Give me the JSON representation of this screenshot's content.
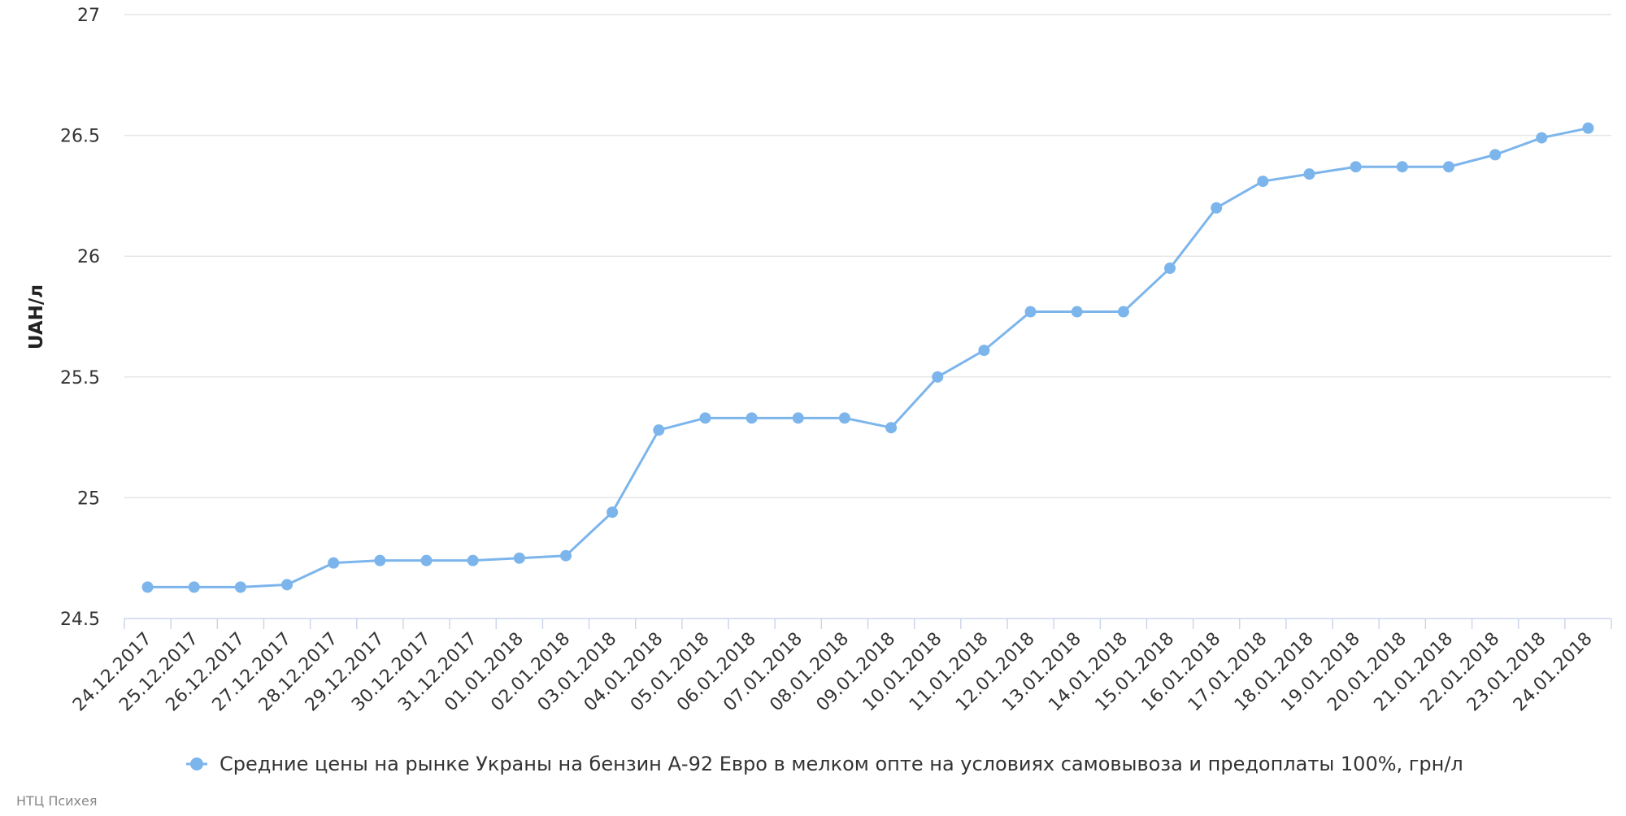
{
  "chart_data": {
    "type": "line",
    "title": "",
    "xlabel": "",
    "ylabel": "UAH/л",
    "ylim": [
      24.5,
      27
    ],
    "yticks": [
      "24.5",
      "25",
      "25.5",
      "26",
      "26.5",
      "27"
    ],
    "grid": true,
    "legend_position": "bottom",
    "categories": [
      "24.12.2017",
      "25.12.2017",
      "26.12.2017",
      "27.12.2017",
      "28.12.2017",
      "29.12.2017",
      "30.12.2017",
      "31.12.2017",
      "01.01.2018",
      "02.01.2018",
      "03.01.2018",
      "04.01.2018",
      "05.01.2018",
      "06.01.2018",
      "07.01.2018",
      "08.01.2018",
      "09.01.2018",
      "10.01.2018",
      "11.01.2018",
      "12.01.2018",
      "13.01.2018",
      "14.01.2018",
      "15.01.2018",
      "16.01.2018",
      "17.01.2018",
      "18.01.2018",
      "19.01.2018",
      "20.01.2018",
      "21.01.2018",
      "22.01.2018",
      "23.01.2018",
      "24.01.2018"
    ],
    "series": [
      {
        "name": "Средние цены на рынке Украны на бензин А-92 Евро в мелком опте на условиях самовывоза и предоплаты 100%, грн/л",
        "color": "#7cb5ec",
        "values": [
          24.63,
          24.63,
          24.63,
          24.64,
          24.73,
          24.74,
          24.74,
          24.74,
          24.75,
          24.76,
          24.94,
          25.28,
          25.33,
          25.33,
          25.33,
          25.33,
          25.29,
          25.5,
          25.61,
          25.77,
          25.77,
          25.77,
          25.95,
          26.2,
          26.31,
          26.34,
          26.37,
          26.37,
          26.37,
          26.42,
          26.49,
          26.53
        ]
      }
    ]
  },
  "credit": "НТЦ Психея"
}
